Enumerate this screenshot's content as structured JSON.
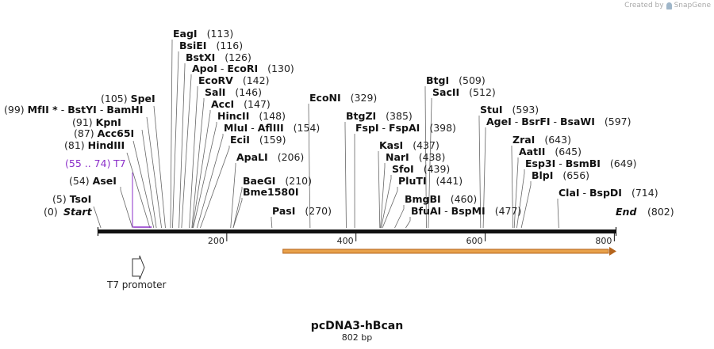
{
  "brand": {
    "credit_prefix": "Created by",
    "name": "SnapGene",
    "icon": "snapgene-logo-icon"
  },
  "map": {
    "name": "pcDNA3-hBcan",
    "length_label": "802 bp",
    "length_bp": 802
  },
  "axis": {
    "ticks": [
      {
        "bp": 200,
        "label": "200"
      },
      {
        "bp": 400,
        "label": "400"
      },
      {
        "bp": 600,
        "label": "600"
      },
      {
        "bp": 800,
        "label": "800"
      }
    ]
  },
  "ends": {
    "start_label": "Start",
    "start_pos": "(0)",
    "end_label": "End",
    "end_pos": "(802)"
  },
  "primer": {
    "label": "T7",
    "range": "(55 .. 74)",
    "start_bp": 55,
    "end_bp": 74
  },
  "promoter": {
    "label": "T7 promoter",
    "icon": "promoter-arrow-icon"
  },
  "orf": {
    "start_bp": 287,
    "end_bp": 802,
    "icon": "orf-arrow-icon"
  },
  "colors": {
    "primer": "#8b2fc9",
    "orf_fill": "#e8a14a",
    "orf_edge": "#b5651d",
    "backbone": "#111111"
  },
  "sites_left": [
    {
      "parts": [
        "EagI"
      ],
      "pos": "(113)"
    },
    {
      "parts": [
        "BsiEI"
      ],
      "pos": "(116)"
    },
    {
      "parts": [
        "BstXI"
      ],
      "pos": "(126)"
    },
    {
      "parts": [
        "ApoI",
        "EcoRI"
      ],
      "pos": "(130)"
    },
    {
      "parts": [
        "EcoRV"
      ],
      "pos": "(142)"
    },
    {
      "parts": [
        "SalI"
      ],
      "pos": "(146)"
    },
    {
      "parts": [
        "AccI"
      ],
      "pos": "(147)"
    },
    {
      "parts": [
        "HincII"
      ],
      "pos": "(148)"
    },
    {
      "parts": [
        "MluI",
        "AflIII"
      ],
      "pos": "(154)"
    },
    {
      "parts": [
        "EciI"
      ],
      "pos": "(159)"
    },
    {
      "parts": [
        "ApaLI"
      ],
      "pos": "(206)"
    },
    {
      "parts": [
        "BaeGI"
      ],
      "pos": "(210)"
    },
    {
      "parts": [
        "Bme1580I"
      ],
      "pos": ""
    },
    {
      "parts": [
        "PasI"
      ],
      "pos": "(270)"
    }
  ],
  "sites_right_pos": [
    {
      "parts": [
        "SpeI"
      ],
      "pos": "(105)"
    },
    {
      "parts": [
        "MfII *",
        "BstYI",
        "BamHI"
      ],
      "pos": "(99)"
    },
    {
      "parts": [
        "KpnI"
      ],
      "pos": "(91)"
    },
    {
      "parts": [
        "Acc65I"
      ],
      "pos": "(87)"
    },
    {
      "parts": [
        "HindIII"
      ],
      "pos": "(81)"
    },
    {
      "parts": [
        "AseI"
      ],
      "pos": "(54)"
    },
    {
      "parts": [
        "TsoI"
      ],
      "pos": "(5)"
    }
  ],
  "sites_mid": [
    {
      "parts": [
        "EcoNI"
      ],
      "pos": "(329)"
    },
    {
      "parts": [
        "BtgZI"
      ],
      "pos": "(385)"
    },
    {
      "parts": [
        "FspI",
        "FspAI"
      ],
      "pos": "(398)"
    },
    {
      "parts": [
        "KasI"
      ],
      "pos": "(437)"
    },
    {
      "parts": [
        "NarI"
      ],
      "pos": "(438)"
    },
    {
      "parts": [
        "SfoI"
      ],
      "pos": "(439)"
    },
    {
      "parts": [
        "PluTI"
      ],
      "pos": "(441)"
    },
    {
      "parts": [
        "BmgBI"
      ],
      "pos": "(460)"
    },
    {
      "parts": [
        "BfuAI",
        "BspMI"
      ],
      "pos": "(477)"
    },
    {
      "parts": [
        "BtgI"
      ],
      "pos": "(509)"
    },
    {
      "parts": [
        "SacII"
      ],
      "pos": "(512)"
    },
    {
      "parts": [
        "StuI"
      ],
      "pos": "(593)"
    },
    {
      "parts": [
        "AgeI",
        "BsrFI",
        "BsaWI"
      ],
      "pos": "(597)"
    },
    {
      "parts": [
        "ZraI"
      ],
      "pos": "(643)"
    },
    {
      "parts": [
        "AatII"
      ],
      "pos": "(645)"
    },
    {
      "parts": [
        "Esp3I",
        "BsmBI"
      ],
      "pos": "(649)"
    },
    {
      "parts": [
        "BlpI"
      ],
      "pos": "(656)"
    },
    {
      "parts": [
        "ClaI",
        "BspDI"
      ],
      "pos": "(714)"
    }
  ]
}
